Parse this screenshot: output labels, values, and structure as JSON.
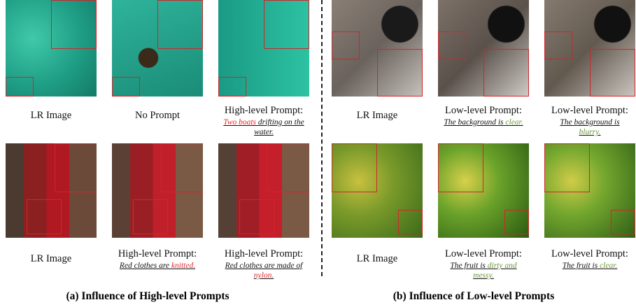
{
  "panels": [
    {
      "title": "(a) Influence of High-level Prompts",
      "cells": [
        {
          "label": "LR Image"
        },
        {
          "label": "No Prompt"
        },
        {
          "label": "High-level Prompt:",
          "prompt": [
            {
              "text": "Two boats",
              "color": "#e0282e"
            },
            {
              "text": " drifting on the water.",
              "color": "#111111"
            }
          ]
        },
        {
          "label": "LR Image"
        },
        {
          "label": "High-level Prompt:",
          "prompt": [
            {
              "text": "Red clothes are ",
              "color": "#111111"
            },
            {
              "text": "knitted.",
              "color": "#e0282e"
            }
          ]
        },
        {
          "label": "High-level Prompt:",
          "prompt": [
            {
              "text": "Red clothes are made of ",
              "color": "#111111"
            },
            {
              "text": "nylon.",
              "color": "#e0282e"
            }
          ]
        }
      ]
    },
    {
      "title": "(b) Influence of Low-level Prompts",
      "cells": [
        {
          "label": "LR Image"
        },
        {
          "label": "Low-level Prompt:",
          "prompt": [
            {
              "text": "The background is ",
              "color": "#111111"
            },
            {
              "text": "clear.",
              "color": "#6a9a3a"
            }
          ]
        },
        {
          "label": "Low-level Prompt:",
          "prompt": [
            {
              "text": "The background is ",
              "color": "#111111"
            },
            {
              "text": "blurry.",
              "color": "#6a9a3a"
            }
          ]
        },
        {
          "label": "LR Image"
        },
        {
          "label": "Low-level Prompt:",
          "prompt": [
            {
              "text": "The fruit is ",
              "color": "#111111"
            },
            {
              "text": "dirty and messy.",
              "color": "#6a9a3a"
            }
          ]
        },
        {
          "label": "Low-level Prompt:",
          "prompt": [
            {
              "text": "The fruit is ",
              "color": "#111111"
            },
            {
              "text": "clear.",
              "color": "#6a9a3a"
            }
          ]
        }
      ]
    }
  ]
}
